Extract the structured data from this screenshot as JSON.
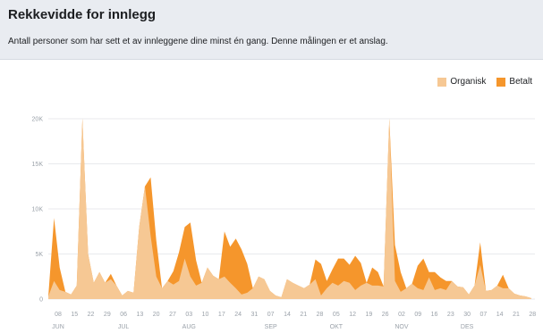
{
  "header": {
    "title": "Rekkevidde for innlegg",
    "subtitle": "Antall personer som har sett et av innleggene dine minst én gang. Denne målingen er et anslag."
  },
  "legend": {
    "organic_label": "Organisk",
    "paid_label": "Betalt"
  },
  "colors": {
    "organic": "#f6c894",
    "paid": "#f5962c",
    "grid": "#e8eaed"
  },
  "chart_data": {
    "type": "area",
    "stacked": true,
    "ylim": [
      0,
      20000
    ],
    "yticks": [
      {
        "value": 0,
        "label": "0"
      },
      {
        "value": 5000,
        "label": "5K"
      },
      {
        "value": 10000,
        "label": "10K"
      },
      {
        "value": 15000,
        "label": "15K"
      },
      {
        "value": 20000,
        "label": "20K"
      }
    ],
    "x_tick_labels": [
      "08",
      "15",
      "22",
      "29",
      "06",
      "13",
      "20",
      "27",
      "03",
      "10",
      "17",
      "24",
      "31",
      "07",
      "14",
      "21",
      "28",
      "05",
      "12",
      "19",
      "26",
      "02",
      "09",
      "16",
      "23",
      "30",
      "07",
      "14",
      "21",
      "28"
    ],
    "month_labels": [
      {
        "label": "JUN",
        "tick_index": 0
      },
      {
        "label": "JUL",
        "tick_index": 4
      },
      {
        "label": "AUG",
        "tick_index": 8
      },
      {
        "label": "SEP",
        "tick_index": 13
      },
      {
        "label": "OKT",
        "tick_index": 17
      },
      {
        "label": "NOV",
        "tick_index": 21
      },
      {
        "label": "DES",
        "tick_index": 25
      }
    ],
    "x_start_offset_ticks": -0.6,
    "x_end_offset_ticks": 0.15,
    "series": [
      {
        "name": "Organisk",
        "values": [
          300,
          2000,
          1000,
          800,
          500,
          1500,
          20000,
          5000,
          1800,
          3000,
          1800,
          2200,
          1500,
          400,
          900,
          700,
          8000,
          12500,
          7000,
          2500,
          1200,
          2000,
          1600,
          2000,
          4500,
          2500,
          1500,
          1800,
          3500,
          2600,
          2200,
          2500,
          1800,
          1200,
          500,
          700,
          1200,
          2500,
          2200,
          900,
          400,
          200,
          2200,
          1800,
          1500,
          1200,
          1600,
          2200,
          400,
          1200,
          1800,
          1500,
          2000,
          1800,
          1000,
          1500,
          1800,
          1500,
          1500,
          1400,
          20000,
          2000,
          800,
          1200,
          1700,
          1200,
          1000,
          2400,
          1000,
          1200,
          1000,
          2000,
          1400,
          1300,
          500,
          1500,
          3800,
          900,
          1000,
          1500,
          1200,
          1200,
          600,
          400,
          300,
          100
        ]
      },
      {
        "name": "Betalt",
        "values": [
          0,
          7000,
          2500,
          0,
          0,
          0,
          0,
          0,
          0,
          0,
          0,
          600,
          0,
          0,
          0,
          0,
          0,
          0,
          6500,
          4000,
          0,
          0,
          1500,
          3200,
          3500,
          6000,
          2800,
          0,
          0,
          0,
          0,
          5000,
          4000,
          5500,
          5000,
          3200,
          0,
          0,
          0,
          0,
          0,
          0,
          0,
          0,
          0,
          0,
          0,
          2200,
          3500,
          800,
          1500,
          3000,
          2500,
          2000,
          3800,
          2500,
          0,
          2000,
          1500,
          0,
          0,
          4000,
          2200,
          0,
          0,
          2500,
          3500,
          600,
          2000,
          1200,
          1000,
          0,
          0,
          0,
          0,
          0,
          2500,
          0,
          0,
          0,
          1500,
          0,
          0,
          0,
          0,
          0
        ]
      }
    ]
  }
}
